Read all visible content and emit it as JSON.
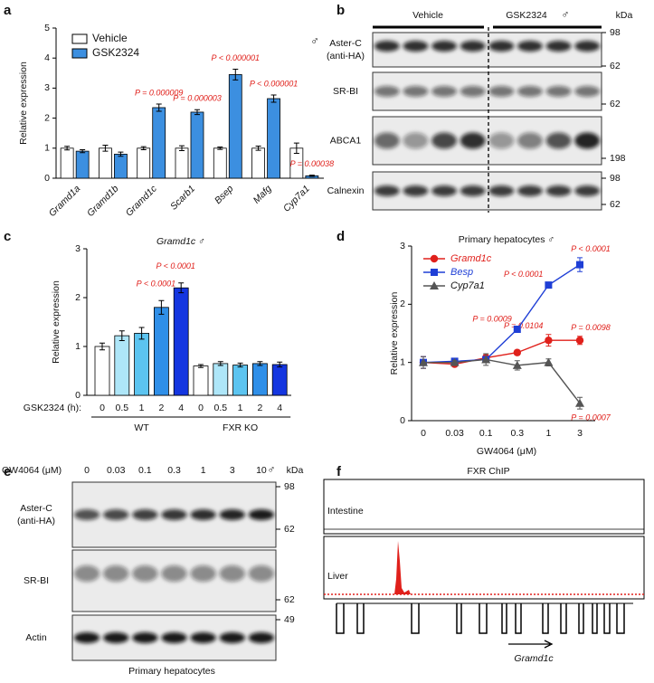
{
  "panel_labels": [
    "a",
    "b",
    "c",
    "d",
    "e",
    "f"
  ],
  "chart_data": [
    {
      "type": "bar",
      "y_label": "Relative expression",
      "symbol": "♂",
      "legend": "upper left",
      "categories": [
        "Gramd1a",
        "Gramd1b",
        "Gramd1c",
        "Scarb1",
        "Bsep",
        "Mafg",
        "Cyp7a1"
      ],
      "series": [
        {
          "name": "Vehicle",
          "color": "#ffffff",
          "values": [
            1,
            1,
            1,
            1,
            1,
            1,
            1
          ],
          "errors": [
            0.06,
            0.1,
            0.05,
            0.08,
            0.04,
            0.07,
            0.17
          ]
        },
        {
          "name": "GSK2324",
          "color": "#3c8fe0",
          "values": [
            0.9,
            0.8,
            2.35,
            2.2,
            3.45,
            2.65,
            0.08
          ],
          "errors": [
            0.05,
            0.07,
            0.12,
            0.08,
            0.18,
            0.12,
            0.02
          ]
        }
      ],
      "p_values": [
        null,
        null,
        "P = 0.000009",
        "P = 0.000003",
        "P < 0.000001",
        "P < 0.000001",
        "P = 0.00038"
      ],
      "ylim": [
        0,
        5
      ],
      "yticks": [
        0,
        1,
        2,
        3,
        4,
        5
      ]
    },
    {
      "type": "bar",
      "title": "Gramd1c ♂",
      "y_label": "Relative expression",
      "x_prefix": "GSK2324 (h):",
      "groups": [
        "WT",
        "FXR KO"
      ],
      "categories": [
        "0",
        "0.5",
        "1",
        "2",
        "4",
        "0",
        "0.5",
        "1",
        "2",
        "4"
      ],
      "values": [
        1.0,
        1.22,
        1.27,
        1.8,
        2.2,
        0.6,
        0.65,
        0.62,
        0.65,
        0.63
      ],
      "errors": [
        0.07,
        0.1,
        0.12,
        0.14,
        0.1,
        0.03,
        0.04,
        0.04,
        0.04,
        0.05
      ],
      "colors": [
        "#ffffff",
        "#aee6f8",
        "#5cc4f0",
        "#2f8fe8",
        "#1436e0",
        "#ffffff",
        "#aee6f8",
        "#5cc4f0",
        "#2f8fe8",
        "#1436e0"
      ],
      "p_values": [
        null,
        null,
        null,
        "P < 0.0001",
        "P < 0.0001",
        null,
        null,
        null,
        null,
        null
      ],
      "ylim": [
        0,
        3
      ],
      "yticks": [
        0,
        1,
        2,
        3
      ]
    },
    {
      "type": "line",
      "title": "Primary hepatocytes ♂",
      "x_label": "GW4064 (μM)",
      "y_label": "Relative expression",
      "legend": "upper left",
      "categories": [
        "0",
        "0.03",
        "0.1",
        "0.3",
        "1",
        "3"
      ],
      "series": [
        {
          "name": "Gramd1c",
          "color": "#e0201b",
          "marker": "circle",
          "values": [
            1,
            0.97,
            1.08,
            1.17,
            1.38,
            1.38
          ],
          "errors": [
            0.1,
            0.03,
            0.05,
            0.04,
            0.1,
            0.07
          ],
          "p_values": [
            null,
            null,
            null,
            null,
            "P = 0.0104",
            "P = 0.0098"
          ]
        },
        {
          "name": "Besp",
          "color": "#1f3fd6",
          "marker": "square",
          "values": [
            1,
            1.02,
            1.05,
            1.57,
            2.33,
            2.68
          ],
          "errors": [
            0.1,
            0.03,
            0.05,
            0.03,
            0.04,
            0.12
          ],
          "p_values": [
            null,
            null,
            null,
            "P = 0.0009",
            "P < 0.0001",
            "P < 0.0001"
          ]
        },
        {
          "name": "Cyp7a1",
          "color": "#555555",
          "marker": "triangle",
          "values": [
            1,
            1.0,
            1.05,
            0.95,
            1.0,
            0.3
          ],
          "errors": [
            0.1,
            0.03,
            0.1,
            0.08,
            0.06,
            0.1
          ],
          "p_values": [
            null,
            null,
            null,
            null,
            null,
            "P = 0.0007"
          ]
        }
      ],
      "ylim": [
        0,
        3
      ],
      "yticks": [
        0,
        1,
        2,
        3
      ]
    }
  ],
  "blot_b": {
    "columns": [
      "Vehicle",
      "GSK2324"
    ],
    "symbol": "♂",
    "unit": "kDa",
    "rows": [
      {
        "label": [
          "Aster-C",
          "(anti-HA)"
        ],
        "markers": [
          98,
          62
        ]
      },
      {
        "label": [
          "SR-BI"
        ],
        "markers": [
          62
        ]
      },
      {
        "label": [
          "ABCA1"
        ],
        "markers": [
          198
        ]
      },
      {
        "label": [
          "Calnexin"
        ],
        "markers": [
          98,
          62
        ]
      }
    ]
  },
  "blot_e": {
    "header": "GW4064 (μM)",
    "lanes": [
      "0",
      "0.03",
      "0.1",
      "0.3",
      "1",
      "3",
      "10"
    ],
    "symbol": "♂",
    "unit": "kDa",
    "rows": [
      {
        "label": [
          "Aster-C",
          "(anti-HA)"
        ],
        "markers": [
          98,
          62
        ]
      },
      {
        "label": [
          "SR-BI"
        ],
        "markers": [
          62
        ]
      },
      {
        "label": [
          "Actin"
        ],
        "markers": [
          49
        ]
      }
    ],
    "footer": "Primary hepatocytes"
  },
  "chip_f": {
    "title": "FXR ChIP",
    "tracks": [
      "Intestine",
      "Liver"
    ],
    "gene": "Gramd1c"
  }
}
